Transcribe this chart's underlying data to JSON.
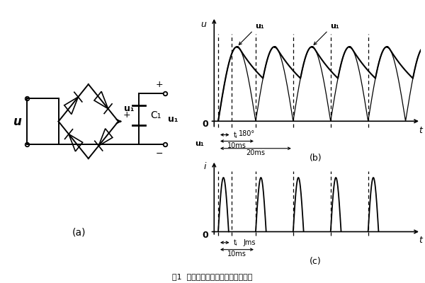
{
  "fig_title": "图1  整流滤波电压及整流电流的波形",
  "background_color": "#ffffff",
  "panel_a": {
    "label": "(a)"
  },
  "panel_b": {
    "label": "(b)",
    "ylabel": "u",
    "xlabel": "t",
    "u1_label": "u₁",
    "dim_180": "180°",
    "dim_tc": "tⱼ",
    "dim_10ms": "10ms",
    "dim_20ms": "20ms",
    "zero_label": "0"
  },
  "panel_c": {
    "label": "(c)",
    "ylabel": "i",
    "xlabel": "t",
    "dim_tc": "tⱼ",
    "dim_jms": "Jms",
    "dim_10ms": "10ms",
    "zero_label": "0"
  }
}
